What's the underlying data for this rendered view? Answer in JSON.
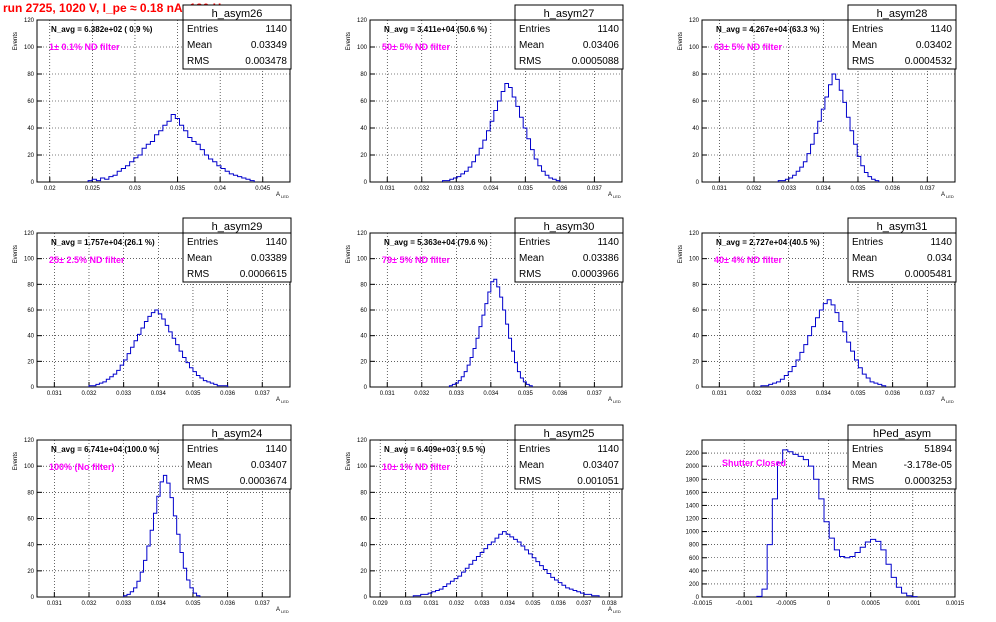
{
  "page_title": "run 2725,  1020 V, I_pe ≈ 0.18 nA, 120 Hz",
  "colors": {
    "histogram_line": "#0000cc",
    "annotation_text": "#ff00ff",
    "title_text": "#ff0000",
    "grid": "#000000",
    "stats_box_border": "#000000"
  },
  "chart_data": [
    {
      "type": "histogram",
      "hist_name": "h_asym26",
      "nav_text": "N_avg = 6.382e+02 ( 0.9 %)",
      "filter_text": "1± 0.1% ND filter",
      "ylabel": "Events",
      "xlabel": "A_LED",
      "xlim": [
        0.0185,
        0.0482
      ],
      "ylim": [
        0,
        120
      ],
      "xticks": [
        "0.02",
        "0.025",
        "0.03",
        "0.035",
        "0.04",
        "0.045"
      ],
      "xtick_values": [
        0.02,
        0.025,
        0.03,
        0.035,
        0.04,
        0.045
      ],
      "yticks": [
        "0",
        "20",
        "40",
        "60",
        "80",
        "100",
        "120"
      ],
      "stats": {
        "entries": "1140",
        "mean": "0.03349",
        "rms": "0.003478"
      },
      "bin_edges": [
        0.0245,
        0.044
      ],
      "counts": [
        1,
        2,
        1,
        3,
        2,
        4,
        5,
        8,
        10,
        12,
        15,
        18,
        20,
        25,
        28,
        30,
        35,
        38,
        42,
        45,
        50,
        47,
        42,
        38,
        33,
        30,
        28,
        24,
        20,
        17,
        15,
        12,
        10,
        8,
        6,
        5,
        4,
        3,
        2,
        1
      ]
    },
    {
      "type": "histogram",
      "hist_name": "h_asym27",
      "nav_text": "N_avg = 3.411e+04 (50.6 %)",
      "filter_text": "50± 5% ND filter",
      "ylabel": "Events",
      "xlabel": "A_LED",
      "xlim": [
        0.0305,
        0.0378
      ],
      "ylim": [
        0,
        120
      ],
      "xticks": [
        "0.031",
        "0.032",
        "0.033",
        "0.034",
        "0.035",
        "0.036",
        "0.037"
      ],
      "xtick_values": [
        0.031,
        0.032,
        0.033,
        0.034,
        0.035,
        0.036,
        0.037
      ],
      "yticks": [
        "0",
        "20",
        "40",
        "60",
        "80",
        "100",
        "120"
      ],
      "stats": {
        "entries": "1140",
        "mean": "0.03406",
        "rms": "0.0005088"
      },
      "bin_edges": [
        0.0326,
        0.036
      ],
      "counts": [
        1,
        1,
        2,
        3,
        4,
        6,
        8,
        11,
        15,
        20,
        25,
        31,
        38,
        45,
        53,
        60,
        67,
        73,
        70,
        63,
        56,
        48,
        40,
        32,
        24,
        17,
        12,
        8,
        5,
        3,
        2,
        1
      ]
    },
    {
      "type": "histogram",
      "hist_name": "h_asym28",
      "nav_text": "N_avg = 4.267e+04 (63.3 %)",
      "filter_text": "63± 5% ND filter",
      "ylabel": "Events",
      "xlabel": "A_LED",
      "xlim": [
        0.0305,
        0.0378
      ],
      "ylim": [
        0,
        120
      ],
      "xticks": [
        "0.031",
        "0.032",
        "0.033",
        "0.034",
        "0.035",
        "0.036",
        "0.037"
      ],
      "xtick_values": [
        0.031,
        0.032,
        0.033,
        0.034,
        0.035,
        0.036,
        0.037
      ],
      "yticks": [
        "0",
        "20",
        "40",
        "60",
        "80",
        "100",
        "120"
      ],
      "stats": {
        "entries": "1140",
        "mean": "0.03402",
        "rms": "0.0004532"
      },
      "bin_edges": [
        0.0327,
        0.0356
      ],
      "counts": [
        1,
        1,
        2,
        3,
        5,
        8,
        11,
        15,
        21,
        28,
        36,
        45,
        54,
        63,
        72,
        80,
        76,
        68,
        59,
        48,
        38,
        28,
        19,
        12,
        7,
        4,
        2,
        1
      ]
    },
    {
      "type": "histogram",
      "hist_name": "h_asym29",
      "nav_text": "N_avg = 1.757e+04 (26.1 %)",
      "filter_text": "25± 2.5% ND filter",
      "ylabel": "Events",
      "xlabel": "A_LED",
      "xlim": [
        0.0305,
        0.0378
      ],
      "ylim": [
        0,
        120
      ],
      "xticks": [
        "0.031",
        "0.032",
        "0.033",
        "0.034",
        "0.035",
        "0.036",
        "0.037"
      ],
      "xtick_values": [
        0.031,
        0.032,
        0.033,
        0.034,
        0.035,
        0.036,
        0.037
      ],
      "yticks": [
        "0",
        "20",
        "40",
        "60",
        "80",
        "100",
        "120"
      ],
      "stats": {
        "entries": "1140",
        "mean": "0.03389",
        "rms": "0.0006615"
      },
      "bin_edges": [
        0.032,
        0.036
      ],
      "counts": [
        1,
        1,
        2,
        3,
        4,
        6,
        8,
        10,
        13,
        17,
        21,
        26,
        31,
        36,
        41,
        46,
        51,
        55,
        58,
        60,
        57,
        53,
        48,
        43,
        38,
        33,
        28,
        23,
        19,
        15,
        12,
        9,
        7,
        5,
        4,
        3,
        2,
        1,
        1,
        1
      ]
    },
    {
      "type": "histogram",
      "hist_name": "h_asym30",
      "nav_text": "N_avg = 5.363e+04 (79.6 %)",
      "filter_text": "79± 5% ND filter",
      "ylabel": "Events",
      "xlabel": "A_LED",
      "xlim": [
        0.0305,
        0.0378
      ],
      "ylim": [
        0,
        120
      ],
      "xticks": [
        "0.031",
        "0.032",
        "0.033",
        "0.034",
        "0.035",
        "0.036",
        "0.037"
      ],
      "xtick_values": [
        0.031,
        0.032,
        0.033,
        0.034,
        0.035,
        0.036,
        0.037
      ],
      "yticks": [
        "0",
        "20",
        "40",
        "60",
        "80",
        "100",
        "120"
      ],
      "stats": {
        "entries": "1140",
        "mean": "0.03386",
        "rms": "0.0003966"
      },
      "bin_edges": [
        0.0328,
        0.0352
      ],
      "counts": [
        1,
        2,
        3,
        5,
        8,
        12,
        17,
        23,
        30,
        38,
        47,
        56,
        65,
        74,
        82,
        84,
        78,
        70,
        60,
        49,
        38,
        28,
        19,
        12,
        7,
        4,
        2,
        1
      ]
    },
    {
      "type": "histogram",
      "hist_name": "h_asym31",
      "nav_text": "N_avg = 2.727e+04 (40.5 %)",
      "filter_text": "40± 4% ND filter",
      "ylabel": "Events",
      "xlabel": "A_LED",
      "xlim": [
        0.0305,
        0.0378
      ],
      "ylim": [
        0,
        120
      ],
      "xticks": [
        "0.031",
        "0.032",
        "0.033",
        "0.034",
        "0.035",
        "0.036",
        "0.037"
      ],
      "xtick_values": [
        0.031,
        0.032,
        0.033,
        0.034,
        0.035,
        0.036,
        0.037
      ],
      "yticks": [
        "0",
        "20",
        "40",
        "60",
        "80",
        "100",
        "120"
      ],
      "stats": {
        "entries": "1140",
        "mean": "0.034",
        "rms": "0.0005481"
      },
      "bin_edges": [
        0.0322,
        0.0358
      ],
      "counts": [
        1,
        1,
        2,
        3,
        4,
        6,
        9,
        12,
        16,
        21,
        27,
        33,
        40,
        47,
        54,
        60,
        65,
        68,
        64,
        58,
        51,
        43,
        35,
        28,
        21,
        15,
        10,
        7,
        4,
        3,
        2,
        1
      ]
    },
    {
      "type": "histogram",
      "hist_name": "h_asym24",
      "nav_text": "N_avg = 6.741e+04 (100.0 %)",
      "filter_text": "100% (No filter)",
      "ylabel": "Events",
      "xlabel": "A_LED",
      "xlim": [
        0.0305,
        0.0378
      ],
      "ylim": [
        0,
        120
      ],
      "xticks": [
        "0.031",
        "0.032",
        "0.033",
        "0.034",
        "0.035",
        "0.036",
        "0.037"
      ],
      "xtick_values": [
        0.031,
        0.032,
        0.033,
        0.034,
        0.035,
        0.036,
        0.037
      ],
      "yticks": [
        "0",
        "20",
        "40",
        "60",
        "80",
        "100",
        "120"
      ],
      "stats": {
        "entries": "1140",
        "mean": "0.03407",
        "rms": "0.0003674"
      },
      "bin_edges": [
        0.033,
        0.0352
      ],
      "counts": [
        1,
        2,
        4,
        7,
        12,
        19,
        28,
        39,
        51,
        64,
        77,
        88,
        93,
        87,
        76,
        62,
        48,
        34,
        22,
        13,
        7,
        3,
        1
      ]
    },
    {
      "type": "histogram",
      "hist_name": "h_asym25",
      "nav_text": "N_avg = 6.409e+03 ( 9.5 %)",
      "filter_text": "10± 1% ND filter",
      "ylabel": "Events",
      "xlabel": "A_LED",
      "xlim": [
        0.0286,
        0.0385
      ],
      "ylim": [
        0,
        120
      ],
      "xticks": [
        "0.029",
        "0.03",
        "0.031",
        "0.032",
        "0.033",
        "0.034",
        "0.035",
        "0.036",
        "0.037",
        "0.038"
      ],
      "xtick_values": [
        0.029,
        0.03,
        0.031,
        0.032,
        0.033,
        0.034,
        0.035,
        0.036,
        0.037,
        0.038
      ],
      "yticks": [
        "0",
        "20",
        "40",
        "60",
        "80",
        "100",
        "120"
      ],
      "stats": {
        "entries": "1140",
        "mean": "0.03407",
        "rms": "0.001051"
      },
      "bin_edges": [
        0.0303,
        0.0376
      ],
      "counts": [
        1,
        1,
        2,
        2,
        3,
        4,
        5,
        6,
        8,
        10,
        12,
        14,
        16,
        19,
        22,
        25,
        28,
        31,
        34,
        37,
        40,
        42,
        45,
        48,
        50,
        48,
        46,
        44,
        42,
        39,
        36,
        33,
        30,
        27,
        24,
        21,
        18,
        15,
        13,
        11,
        9,
        7,
        6,
        5,
        4,
        3,
        2,
        2,
        1,
        1
      ]
    },
    {
      "type": "histogram",
      "hist_name": "hPed_asym",
      "nav_text": "",
      "filter_text": "Shutter Closed",
      "ylabel": "",
      "xlabel": "",
      "xlim": [
        -0.0015,
        0.0015
      ],
      "ylim": [
        0,
        2400
      ],
      "xticks": [
        "-0.0015",
        "-0.001",
        "-0.0005",
        "0",
        "0.0005",
        "0.001",
        "0.0015"
      ],
      "xtick_values": [
        -0.0015,
        -0.001,
        -0.0005,
        0,
        0.0005,
        0.001,
        0.0015
      ],
      "yticks": [
        "0",
        "200",
        "400",
        "600",
        "800",
        "1000",
        "1200",
        "1400",
        "1600",
        "1800",
        "2000",
        "2200"
      ],
      "ytick_values": [
        0,
        200,
        400,
        600,
        800,
        1000,
        1200,
        1400,
        1600,
        1800,
        2000,
        2200
      ],
      "stats": {
        "entries": "51894",
        "mean": "-3.178e-05",
        "rms": "0.0003253"
      },
      "bin_edges": [
        -0.00085,
        0.00105
      ],
      "counts": [
        10,
        120,
        800,
        1500,
        2050,
        2250,
        2220,
        2180,
        2150,
        2100,
        2000,
        1800,
        1500,
        1150,
        900,
        720,
        620,
        600,
        620,
        680,
        760,
        840,
        880,
        850,
        720,
        500,
        300,
        150,
        60,
        20,
        5
      ]
    }
  ]
}
